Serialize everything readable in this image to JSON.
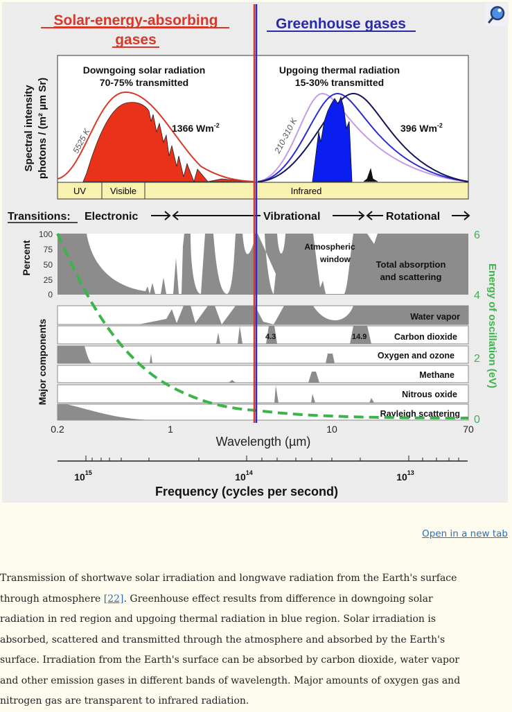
{
  "figure": {
    "title_left_line1": "Solar-energy-absorbing",
    "title_left_line2": "gases",
    "title_right": "Greenhouse gases",
    "y_label_top_1": "Spectral intensity",
    "y_label_top_2": "photons / (m² µm Sr)",
    "solar_label_1": "Downgoing solar radiation",
    "solar_label_2": "70-75% transmitted",
    "thermal_label_1": "Upgoing thermal radiation",
    "thermal_label_2": "15-30% transmitted",
    "solar_temp": "5525 K",
    "thermal_temp": "210-310 K",
    "solar_flux": "1366 Wm",
    "thermal_flux": "396 Wm",
    "flux_exp": "-2",
    "bands": {
      "uv": "UV",
      "visible": "Visible",
      "infrared": "Infrared"
    },
    "transitions": {
      "label": "Transitions:",
      "electronic": "Electronic",
      "vibrational": "Vibrational",
      "rotational": "Rotational"
    },
    "percent_label": "Percent",
    "percent_ticks": [
      "100",
      "75",
      "50",
      "25",
      "0"
    ],
    "atmospheric_window_1": "Atmospheric",
    "atmospheric_window_2": "window",
    "total_1": "Total absorption",
    "total_2": "and scattering",
    "major_components": "Major components",
    "components": [
      "Water vapor",
      "Carbon dioxide",
      "Oxygen and ozone",
      "Methane",
      "Nitrous oxide",
      "Rayleigh scattering"
    ],
    "co2_peaks": [
      "4.3",
      "14.9"
    ],
    "wavelength_ticks": [
      "0.2",
      "1",
      "10",
      "70"
    ],
    "wavelength_label": "Wavelength (µm)",
    "energy_label": "Energy of oscillation (eV)",
    "energy_ticks": [
      "6",
      "4",
      "2",
      "0"
    ],
    "frequency_ticks": [
      {
        "base": "10",
        "exp": "15"
      },
      {
        "base": "10",
        "exp": "14"
      },
      {
        "base": "10",
        "exp": "13"
      }
    ],
    "frequency_label": "Frequency (cycles per second)",
    "colors": {
      "solar": "#e8321a",
      "thermal": "#0a1ef0",
      "energy_curve": "#3cb44b",
      "absorption": "#8c8c8c",
      "band_strip": "#f8f2b0"
    }
  },
  "open_link": "Open in a new tab",
  "caption": {
    "l1": "Transmission of shortwave solar irradiation and longwave radiation from the Earth's surface",
    "l2a": "through atmosphere ",
    "ref": "[22]",
    "l2b": ". Greenhouse effect results from difference in downgoing solar",
    "l3": "radiation in red region and upgoing thermal radiation in blue region. Solar irradiation is",
    "l4": "absorbed, scattered and transmitted through the atmosphere and absorbed by the Earth's",
    "l5": "surface. Irradiation from the Earth's surface can be absorbed by carbon dioxide, water vapor",
    "l6": "and other emission gases in different bands of wavelength. Major amounts of oxygen gas and",
    "l7": "nitrogen gas are transparent to infrared radiation."
  }
}
